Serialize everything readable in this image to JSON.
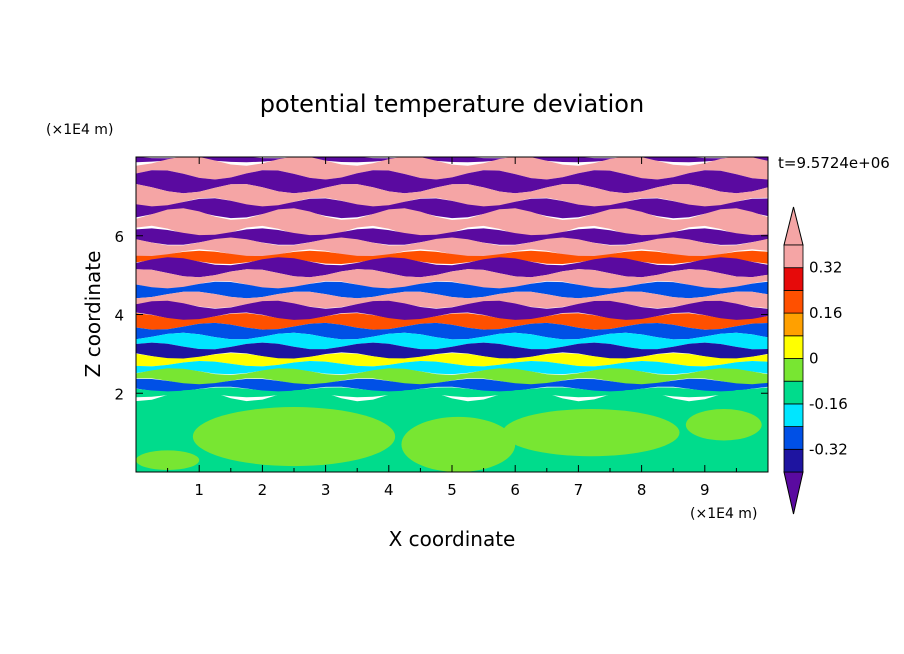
{
  "chart_data": {
    "type": "heatmap",
    "title": "potential temperature deviation",
    "time_label": "t=9.5724e+06",
    "xlabel": "X coordinate",
    "ylabel": "Z coordinate",
    "x_unit": "(×1E4 m)",
    "y_unit": "(×1E4 m)",
    "xlim": [
      0,
      10
    ],
    "ylim": [
      0,
      8
    ],
    "x_ticks": [
      1,
      2,
      3,
      4,
      5,
      6,
      7,
      8,
      9
    ],
    "y_ticks": [
      2,
      4,
      6
    ],
    "colorbar": {
      "levels": [
        -0.4,
        -0.32,
        -0.24,
        -0.16,
        -0.08,
        0,
        0.08,
        0.16,
        0.24,
        0.32,
        0.4
      ],
      "colors": [
        "#5a0aa0",
        "#1e14a0",
        "#0050e6",
        "#00e6ff",
        "#00dc8c",
        "#78e632",
        "#ffff00",
        "#ffa000",
        "#ff5000",
        "#e60a0a",
        "#f5a5a5"
      ],
      "labels": [
        "0.32",
        "0.16",
        "0",
        "-0.16",
        "-0.32"
      ],
      "label_values": [
        0.32,
        0.16,
        0,
        -0.16,
        -0.32
      ],
      "extend": "both"
    },
    "bands": [
      {
        "z": [
          7.9,
          8.0
        ],
        "c": 0
      },
      {
        "z": [
          7.55,
          7.9
        ],
        "c": 10
      },
      {
        "z": [
          7.2,
          7.55
        ],
        "c": 0
      },
      {
        "z": [
          6.85,
          7.2
        ],
        "c": 10
      },
      {
        "z": [
          6.55,
          6.85
        ],
        "c": 0
      },
      {
        "z": [
          6.1,
          6.55
        ],
        "c": 10
      },
      {
        "z": [
          5.85,
          6.1
        ],
        "c": 0
      },
      {
        "z": [
          5.55,
          5.85
        ],
        "c": 10
      },
      {
        "z": [
          5.35,
          5.55
        ],
        "c": 8
      },
      {
        "z": [
          5.05,
          5.35
        ],
        "c": 0
      },
      {
        "z": [
          4.75,
          5.05
        ],
        "c": 10
      },
      {
        "z": [
          4.5,
          4.75
        ],
        "c": 2
      },
      {
        "z": [
          4.25,
          4.5
        ],
        "c": 10
      },
      {
        "z": [
          3.95,
          4.25
        ],
        "c": 0
      },
      {
        "z": [
          3.7,
          3.95
        ],
        "c": 8
      },
      {
        "z": [
          3.45,
          3.7
        ],
        "c": 2
      },
      {
        "z": [
          3.2,
          3.45
        ],
        "c": 3
      },
      {
        "z": [
          2.95,
          3.2
        ],
        "c": 1
      },
      {
        "z": [
          2.75,
          2.95
        ],
        "c": 6
      },
      {
        "z": [
          2.55,
          2.75
        ],
        "c": 3
      },
      {
        "z": [
          2.3,
          2.55
        ],
        "c": 5
      },
      {
        "z": [
          2.1,
          2.3
        ],
        "c": 2
      },
      {
        "z": [
          1.95,
          2.1
        ],
        "c": 4
      },
      {
        "z": [
          0.0,
          1.95
        ],
        "c": 4
      }
    ],
    "blobs": [
      {
        "x": 2.5,
        "z": 0.9,
        "rx": 1.6,
        "rz": 0.75,
        "c": 5
      },
      {
        "x": 5.1,
        "z": 0.7,
        "rx": 0.9,
        "rz": 0.7,
        "c": 5
      },
      {
        "x": 7.2,
        "z": 1.0,
        "rx": 1.4,
        "rz": 0.6,
        "c": 5
      },
      {
        "x": 9.3,
        "z": 1.2,
        "rx": 0.6,
        "rz": 0.4,
        "c": 5
      },
      {
        "x": 0.5,
        "z": 0.3,
        "rx": 0.5,
        "rz": 0.25,
        "c": 5
      }
    ]
  }
}
